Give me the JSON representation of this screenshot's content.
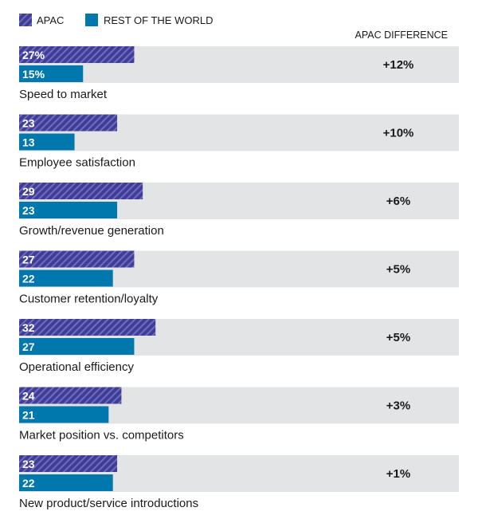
{
  "legend": {
    "apac_label": "APAC",
    "row_label": "REST OF THE WORLD"
  },
  "difference_header": "APAC DIFFERENCE",
  "colors": {
    "apac": "#403d94",
    "apac_hatch": "#6f6cc4",
    "row": "#0077ad",
    "row_background": "#e3e4e6",
    "label_text": "#ffffff"
  },
  "chart_data": {
    "type": "bar",
    "orientation": "horizontal",
    "title": "",
    "xlabel": "",
    "ylabel": "",
    "xlim": [
      0,
      100
    ],
    "categories": [
      "Speed to market",
      "Employee satisfaction",
      "Growth/revenue generation",
      "Customer retention/loyalty",
      "Operational efficiency",
      "Market position vs. competitors",
      "New product/service introductions"
    ],
    "series": [
      {
        "name": "APAC",
        "values": [
          27,
          23,
          29,
          27,
          32,
          24,
          23
        ],
        "value_labels": [
          "27%",
          "23",
          "29",
          "27",
          "32",
          "24",
          "23"
        ]
      },
      {
        "name": "REST OF THE WORLD",
        "values": [
          15,
          13,
          23,
          22,
          27,
          21,
          22
        ],
        "value_labels": [
          "15%",
          "13",
          "23",
          "22",
          "27",
          "21",
          "22"
        ]
      }
    ],
    "differences": [
      "+12%",
      "+10%",
      "+6%",
      "+5%",
      "+5%",
      "+3%",
      "+1%"
    ],
    "legend_position": "top-left",
    "grid": false
  }
}
